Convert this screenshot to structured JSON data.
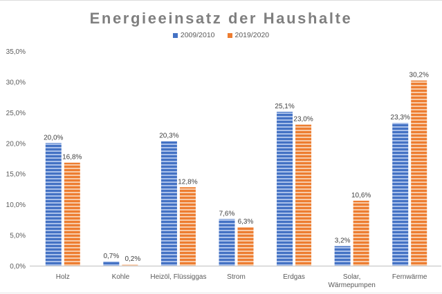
{
  "chart_data": {
    "type": "bar",
    "title": "Energieeinsatz der Haushalte",
    "xlabel": "",
    "ylabel": "",
    "ylim": [
      0,
      35
    ],
    "yticks": [
      "0,0%",
      "5,0%",
      "10,0%",
      "15,0%",
      "20,0%",
      "25,0%",
      "30,0%",
      "35,0%"
    ],
    "ytick_values": [
      0,
      5,
      10,
      15,
      20,
      25,
      30,
      35
    ],
    "grid": false,
    "legend_position": "top-center",
    "categories": [
      [
        "Holz"
      ],
      [
        "Kohle"
      ],
      [
        "Heizöl, Flüssiggas"
      ],
      [
        "Strom"
      ],
      [
        "Erdgas"
      ],
      [
        "Solar,",
        "Wärmepumpen"
      ],
      [
        "Fernwärme"
      ]
    ],
    "series": [
      {
        "name": "2009/2010",
        "color": "#4472c4",
        "stripe_color": "#a9c0ea",
        "values": [
          20.0,
          0.7,
          20.3,
          7.6,
          25.1,
          3.2,
          23.3
        ],
        "labels": [
          "20,0%",
          "0,7%",
          "20,3%",
          "7,6%",
          "25,1%",
          "3,2%",
          "23,3%"
        ]
      },
      {
        "name": "2019/2020",
        "color": "#ed7d31",
        "stripe_color": "#f8cba8",
        "values": [
          16.8,
          0.2,
          12.8,
          6.3,
          23.0,
          10.6,
          30.2
        ],
        "labels": [
          "16,8%",
          "0,2%",
          "12,8%",
          "6,3%",
          "23,0%",
          "10,6%",
          "30,2%"
        ]
      }
    ]
  }
}
